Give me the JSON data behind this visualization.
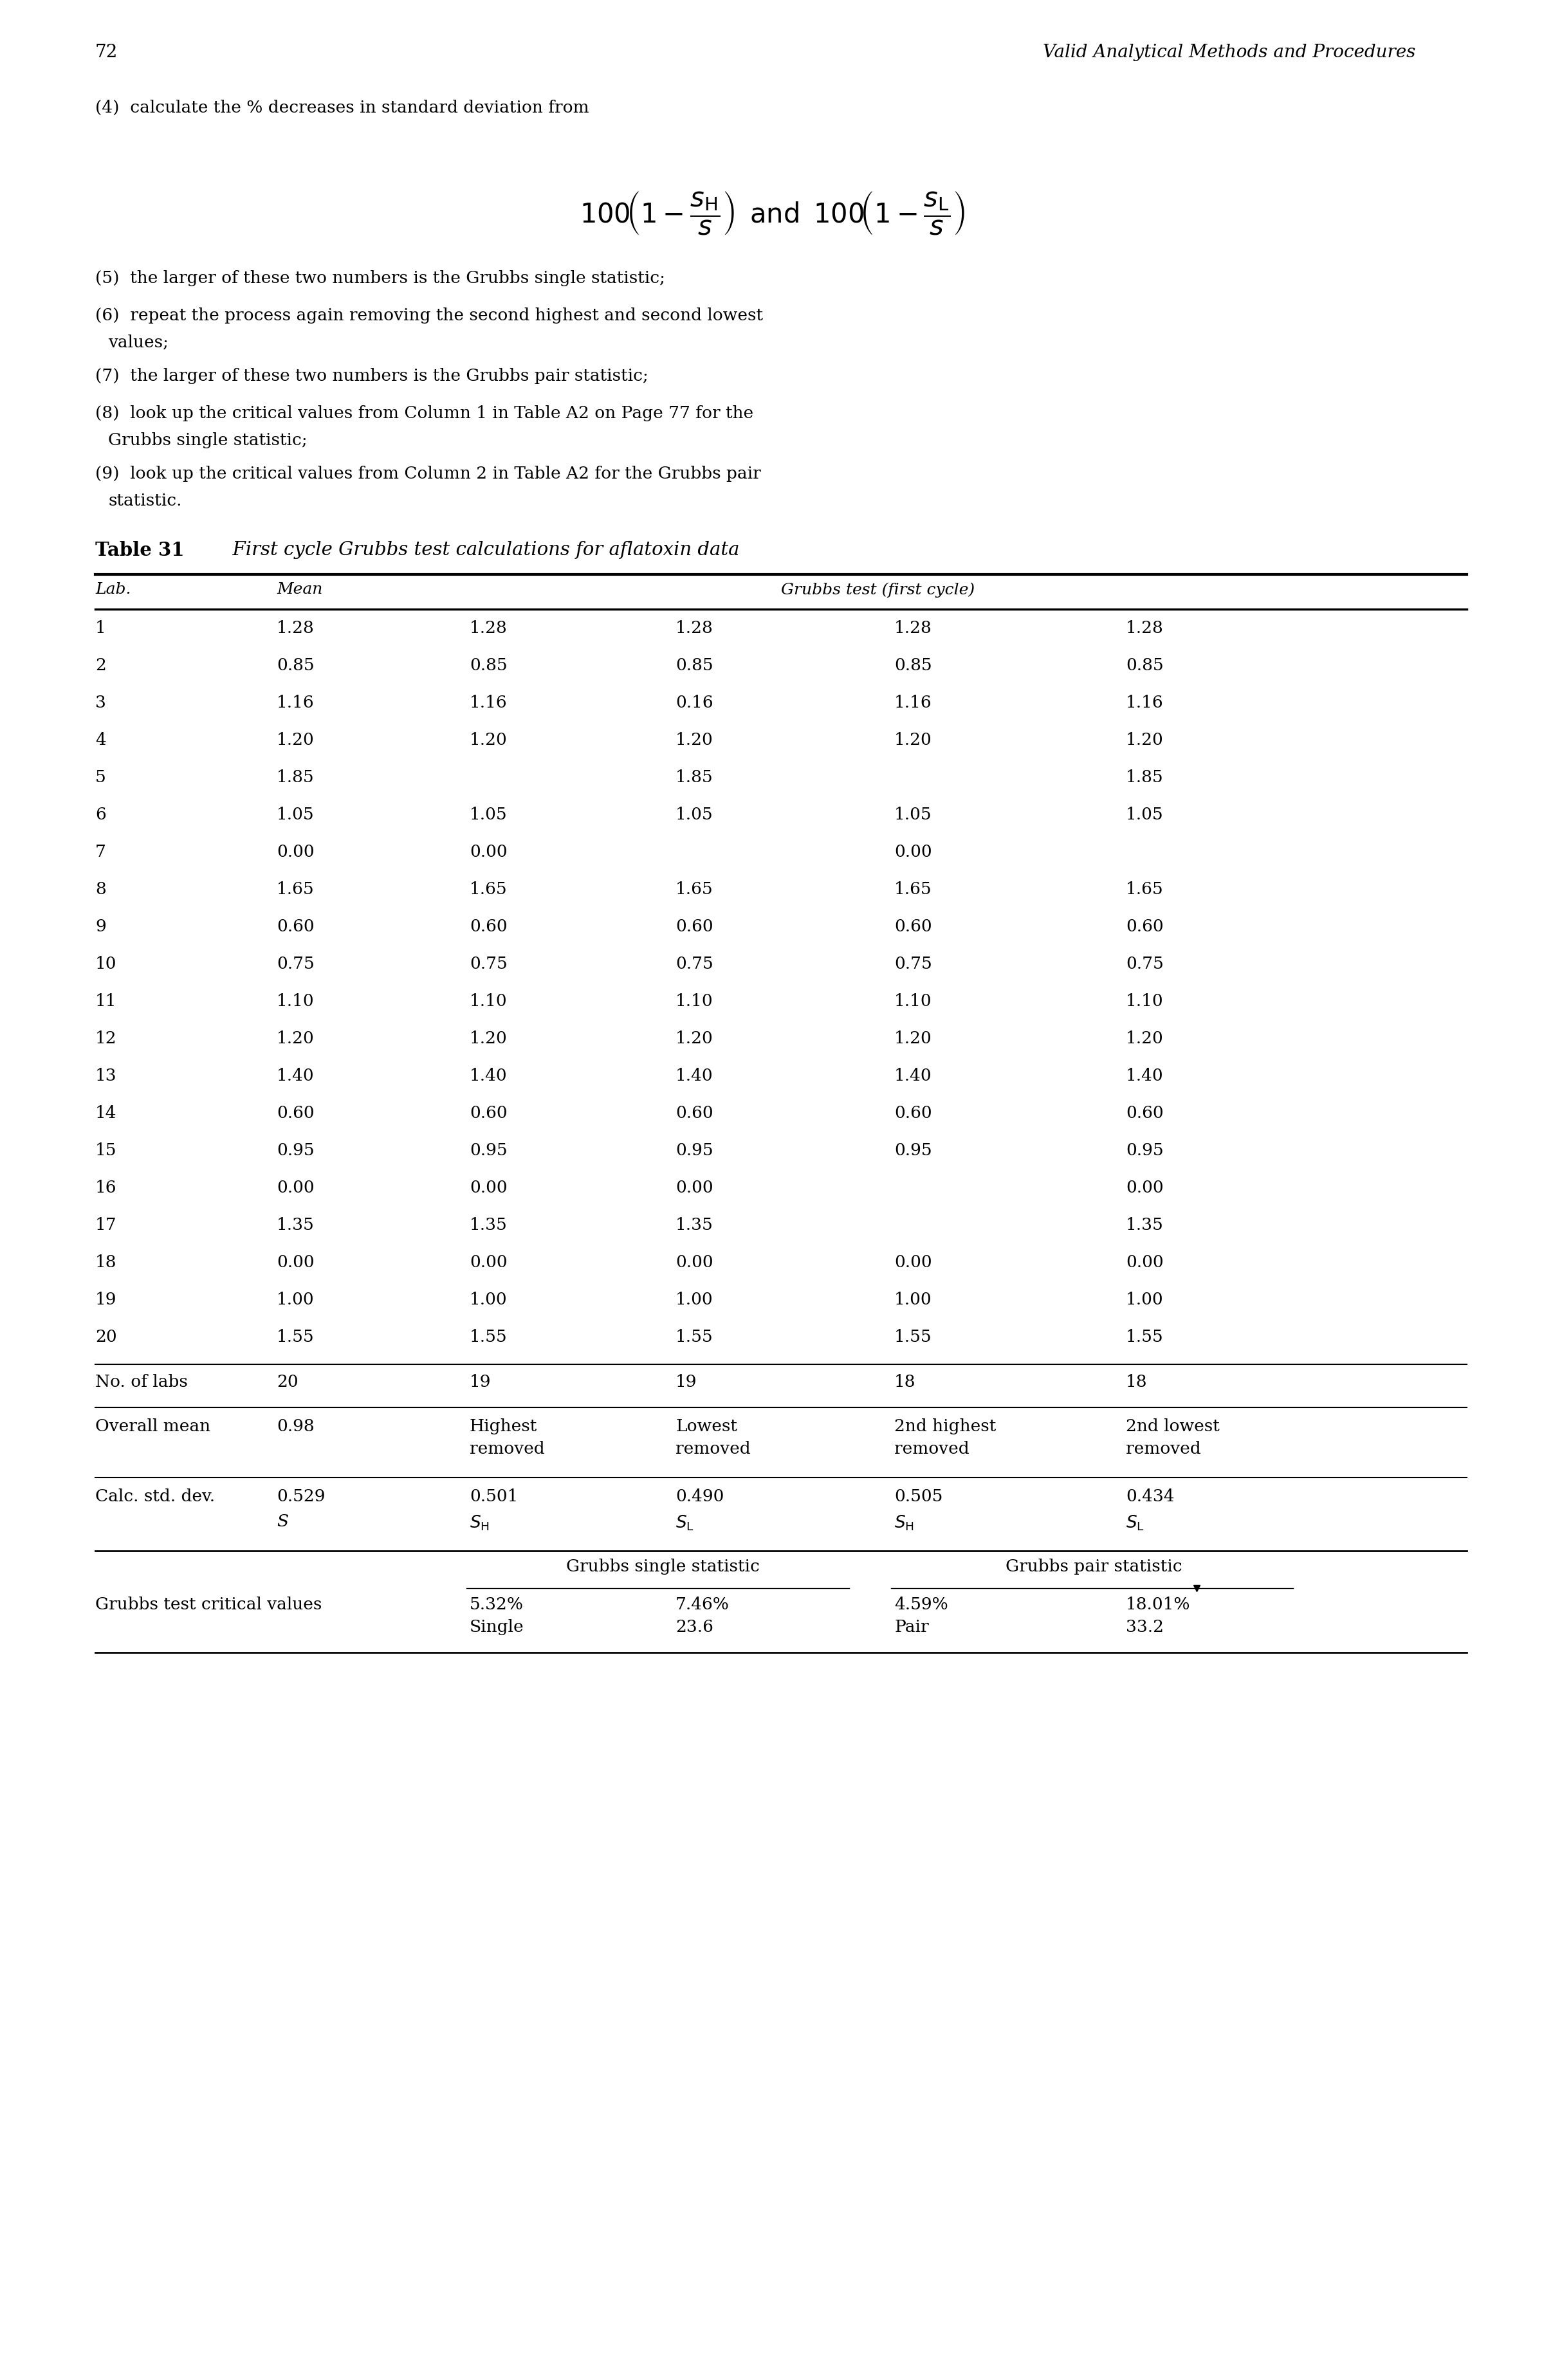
{
  "page_number": "72",
  "header_right": "Valid Analytical Methods and Procedures",
  "data_rows": [
    [
      "1",
      "1.28",
      "1.28",
      "1.28",
      "1.28",
      "1.28"
    ],
    [
      "2",
      "0.85",
      "0.85",
      "0.85",
      "0.85",
      "0.85"
    ],
    [
      "3",
      "1.16",
      "1.16",
      "0.16",
      "1.16",
      "1.16"
    ],
    [
      "4",
      "1.20",
      "1.20",
      "1.20",
      "1.20",
      "1.20"
    ],
    [
      "5",
      "1.85",
      "",
      "1.85",
      "",
      "1.85"
    ],
    [
      "6",
      "1.05",
      "1.05",
      "1.05",
      "1.05",
      "1.05"
    ],
    [
      "7",
      "0.00",
      "0.00",
      "",
      "0.00",
      ""
    ],
    [
      "8",
      "1.65",
      "1.65",
      "1.65",
      "1.65",
      "1.65"
    ],
    [
      "9",
      "0.60",
      "0.60",
      "0.60",
      "0.60",
      "0.60"
    ],
    [
      "10",
      "0.75",
      "0.75",
      "0.75",
      "0.75",
      "0.75"
    ],
    [
      "11",
      "1.10",
      "1.10",
      "1.10",
      "1.10",
      "1.10"
    ],
    [
      "12",
      "1.20",
      "1.20",
      "1.20",
      "1.20",
      "1.20"
    ],
    [
      "13",
      "1.40",
      "1.40",
      "1.40",
      "1.40",
      "1.40"
    ],
    [
      "14",
      "0.60",
      "0.60",
      "0.60",
      "0.60",
      "0.60"
    ],
    [
      "15",
      "0.95",
      "0.95",
      "0.95",
      "0.95",
      "0.95"
    ],
    [
      "16",
      "0.00",
      "0.00",
      "0.00",
      "",
      "0.00"
    ],
    [
      "17",
      "1.35",
      "1.35",
      "1.35",
      "",
      "1.35"
    ],
    [
      "18",
      "0.00",
      "0.00",
      "0.00",
      "0.00",
      "0.00"
    ],
    [
      "19",
      "1.00",
      "1.00",
      "1.00",
      "1.00",
      "1.00"
    ],
    [
      "20",
      "1.55",
      "1.55",
      "1.55",
      "1.55",
      "1.55"
    ]
  ],
  "background_color": "#ffffff"
}
